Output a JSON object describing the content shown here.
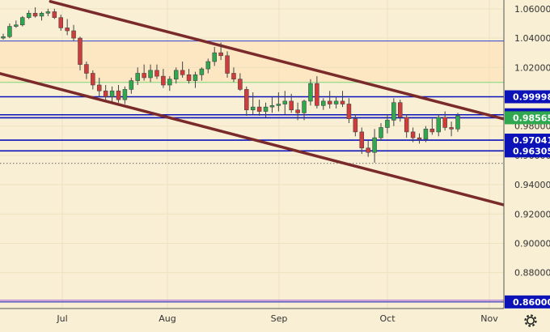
{
  "chart_data": {
    "type": "candlestick",
    "x_ticks": [
      "Jul",
      "Aug",
      "Sep",
      "Oct",
      "Nov"
    ],
    "y_ticks": [
      "1.06000",
      "1.04000",
      "1.02000",
      "1.00000",
      "0.98000",
      "0.96000",
      "0.94000",
      "0.92000",
      "0.90000",
      "0.88000",
      "0.86000"
    ],
    "ylim": [
      0.8555,
      1.066
    ],
    "current_price": 0.98565,
    "levels": [
      {
        "label": "0.99998",
        "value": 0.99998,
        "color": "#0b12b8"
      },
      {
        "label": "0.98769",
        "value": 0.98769,
        "color": "#0b12b8"
      },
      {
        "label": "0.98565",
        "value": 0.98565,
        "color": "#0b12b8"
      },
      {
        "label": "0.97041",
        "value": 0.97041,
        "color": "#0b12b8"
      },
      {
        "label": "0.96305",
        "value": 0.96305,
        "color": "#0b12b8"
      },
      {
        "label": "0.86000",
        "value": 0.86,
        "color": "#0b12b8"
      }
    ],
    "other_lines": [
      {
        "value": 1.038,
        "color": "#3341c9"
      },
      {
        "value": 1.0098,
        "color": "#7dd87d"
      },
      {
        "value": 0.9545,
        "color": "#666666",
        "style": "dotted"
      }
    ],
    "bands": [
      {
        "from": 1.0098,
        "to": 1.038,
        "color": "#fde6c2"
      }
    ],
    "trendlines": [
      {
        "from": [
          0.1,
          1.065
        ],
        "to": [
          1.0,
          0.9848
        ],
        "color": "#7a2a2a"
      },
      {
        "from": [
          0.0,
          1.0158
        ],
        "to": [
          1.0,
          0.9262
        ],
        "color": "#7a2a2a"
      }
    ],
    "candles": [
      [
        1.04,
        1.043,
        1.039,
        1.041
      ],
      [
        1.041,
        1.05,
        1.04,
        1.048
      ],
      [
        1.048,
        1.052,
        1.047,
        1.049
      ],
      [
        1.049,
        1.055,
        1.048,
        1.054
      ],
      [
        1.054,
        1.059,
        1.053,
        1.057
      ],
      [
        1.057,
        1.061,
        1.054,
        1.055
      ],
      [
        1.055,
        1.058,
        1.052,
        1.057
      ],
      [
        1.057,
        1.06,
        1.055,
        1.058
      ],
      [
        1.058,
        1.06,
        1.053,
        1.054
      ],
      [
        1.054,
        1.056,
        1.045,
        1.047
      ],
      [
        1.047,
        1.053,
        1.042,
        1.045
      ],
      [
        1.045,
        1.049,
        1.038,
        1.04
      ],
      [
        1.04,
        1.041,
        1.018,
        1.022
      ],
      [
        1.022,
        1.024,
        1.012,
        1.016
      ],
      [
        1.016,
        1.018,
        1.005,
        1.008
      ],
      [
        1.008,
        1.013,
        1.0,
        1.004
      ],
      [
        1.004,
        1.008,
        0.998,
        1.0
      ],
      [
        1.0,
        1.007,
        0.996,
        1.004
      ],
      [
        1.004,
        1.008,
        0.996,
        0.998
      ],
      [
        0.998,
        1.007,
        0.995,
        1.005
      ],
      [
        1.005,
        1.013,
        1.002,
        1.011
      ],
      [
        1.011,
        1.02,
        1.008,
        1.016
      ],
      [
        1.016,
        1.022,
        1.011,
        1.013
      ],
      [
        1.013,
        1.022,
        1.01,
        1.018
      ],
      [
        1.018,
        1.022,
        1.012,
        1.014
      ],
      [
        1.014,
        1.019,
        1.006,
        1.008
      ],
      [
        1.008,
        1.014,
        1.004,
        1.012
      ],
      [
        1.012,
        1.02,
        1.009,
        1.018
      ],
      [
        1.018,
        1.024,
        1.013,
        1.015
      ],
      [
        1.015,
        1.019,
        1.009,
        1.011
      ],
      [
        1.011,
        1.017,
        1.006,
        1.015
      ],
      [
        1.015,
        1.02,
        1.011,
        1.019
      ],
      [
        1.019,
        1.026,
        1.016,
        1.024
      ],
      [
        1.024,
        1.034,
        1.021,
        1.03
      ],
      [
        1.03,
        1.037,
        1.025,
        1.028
      ],
      [
        1.028,
        1.031,
        1.013,
        1.016
      ],
      [
        1.016,
        1.02,
        1.01,
        1.012
      ],
      [
        1.012,
        1.016,
        1.004,
        1.005
      ],
      [
        1.005,
        1.007,
        0.987,
        0.991
      ],
      [
        0.991,
        1.003,
        0.988,
        0.993
      ],
      [
        0.993,
        0.998,
        0.987,
        0.99
      ],
      [
        0.99,
        0.996,
        0.986,
        0.993
      ],
      [
        0.993,
        1.0,
        0.989,
        0.994
      ],
      [
        0.994,
        1.003,
        0.99,
        0.995
      ],
      [
        0.995,
        1.004,
        0.988,
        0.997
      ],
      [
        0.997,
        1.002,
        0.989,
        0.991
      ],
      [
        0.991,
        0.996,
        0.984,
        0.989
      ],
      [
        0.989,
        0.998,
        0.984,
        0.997
      ],
      [
        0.997,
        1.012,
        0.994,
        1.009
      ],
      [
        1.009,
        1.014,
        0.992,
        0.994
      ],
      [
        0.994,
        0.999,
        0.991,
        0.997
      ],
      [
        0.997,
        1.004,
        0.992,
        0.995
      ],
      [
        0.995,
        1.0,
        0.992,
        0.997
      ],
      [
        0.997,
        1.004,
        0.993,
        0.995
      ],
      [
        0.995,
        0.999,
        0.982,
        0.985
      ],
      [
        0.985,
        0.988,
        0.973,
        0.976
      ],
      [
        0.976,
        0.979,
        0.961,
        0.965
      ],
      [
        0.965,
        0.97,
        0.959,
        0.962
      ],
      [
        0.962,
        0.978,
        0.955,
        0.972
      ],
      [
        0.972,
        0.982,
        0.97,
        0.979
      ],
      [
        0.979,
        0.988,
        0.975,
        0.984
      ],
      [
        0.984,
        0.999,
        0.98,
        0.996
      ],
      [
        0.996,
        0.998,
        0.983,
        0.986
      ],
      [
        0.986,
        0.988,
        0.972,
        0.976
      ],
      [
        0.976,
        0.979,
        0.969,
        0.972
      ],
      [
        0.972,
        0.975,
        0.968,
        0.971
      ],
      [
        0.971,
        0.98,
        0.969,
        0.978
      ],
      [
        0.978,
        0.985,
        0.974,
        0.976
      ],
      [
        0.976,
        0.988,
        0.973,
        0.986
      ],
      [
        0.986,
        0.99,
        0.977,
        0.979
      ],
      [
        0.979,
        0.983,
        0.973,
        0.978
      ],
      [
        0.978,
        0.989,
        0.976,
        0.987
      ]
    ]
  },
  "x_axis_icon": "settings-gear-icon"
}
